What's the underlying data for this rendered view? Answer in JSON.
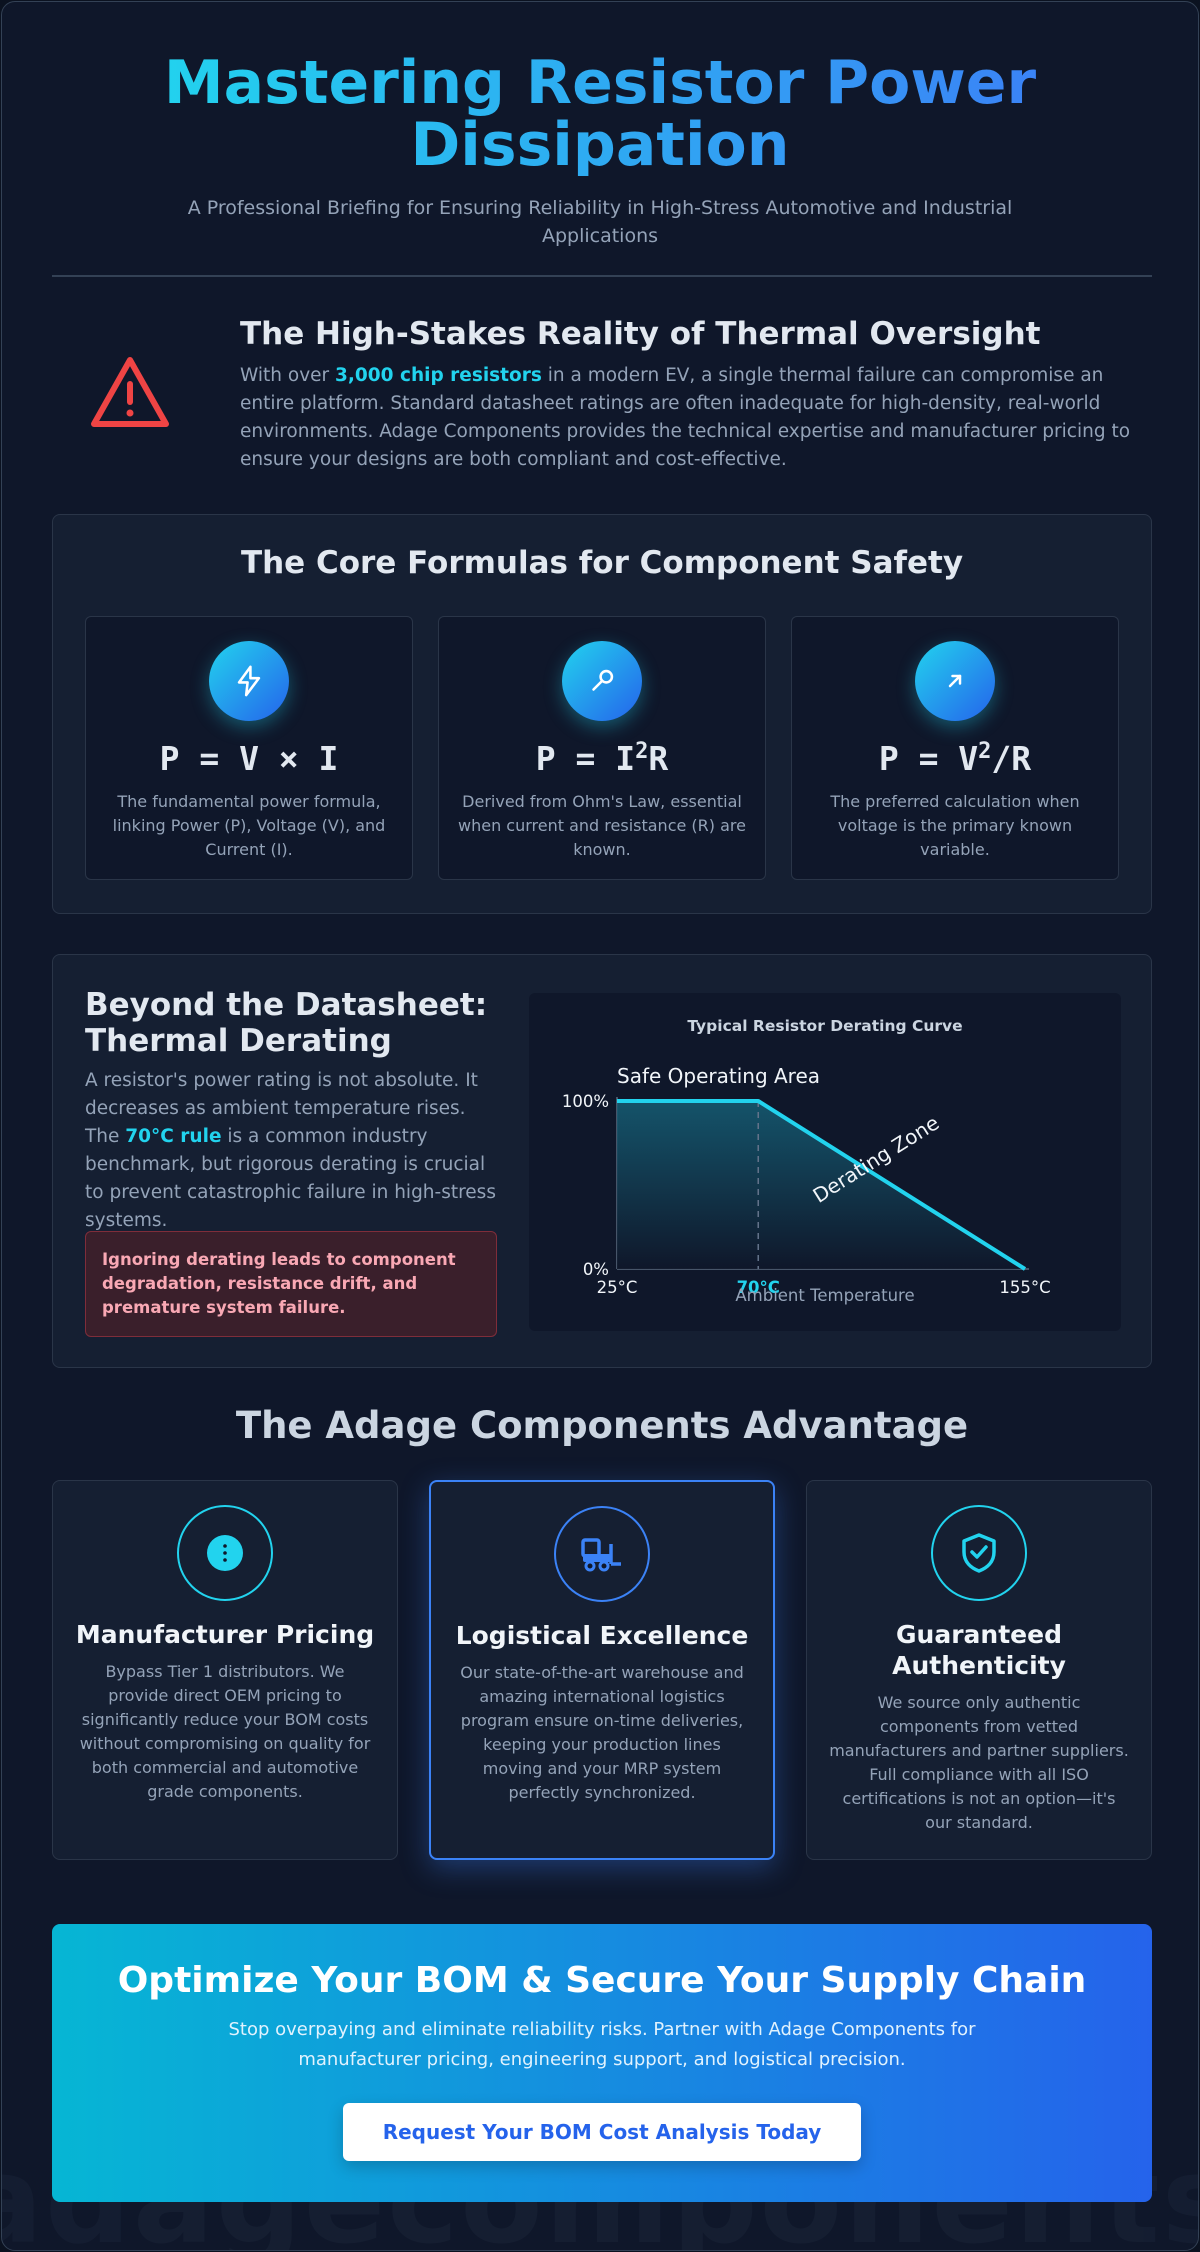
{
  "header": {
    "title": "Mastering Resistor Power Dissipation",
    "subtitle": "A Professional Briefing for Ensuring Reliability in High-Stress Automotive and Industrial Applications"
  },
  "intro": {
    "icon": "warning-triangle-icon",
    "title": "The High-Stakes Reality of Thermal Oversight",
    "text_before": "With over ",
    "highlight": "3,000 chip resistors",
    "text_after": " in a modern EV, a single thermal failure can compromise an entire platform. Standard datasheet ratings are often inadequate for high-density, real-world environments. Adage Components provides the technical expertise and manufacturer pricing to ensure your designs are both compliant and cost-effective."
  },
  "formulas": {
    "title": "The Core Formulas for Component Safety",
    "cards": [
      {
        "icon": "lightning-icon",
        "formula_base": "P = V × I",
        "formula_sup": "",
        "formula_tail": "",
        "desc": "The fundamental power formula, linking Power (P), Voltage (V), and Current (I)."
      },
      {
        "icon": "probe-icon",
        "formula_base": "P = I",
        "formula_sup": "2",
        "formula_tail": "R",
        "desc": "Derived from Ohm's Law, essential when current and resistance (R) are known."
      },
      {
        "icon": "arrow-up-right-icon",
        "formula_base": "P = V",
        "formula_sup": "2",
        "formula_tail": "/R",
        "desc": "The preferred calculation when voltage is the primary known variable."
      }
    ]
  },
  "derating": {
    "title": "Beyond the Datasheet: Thermal Derating",
    "text_before": "A resistor's power rating is not absolute. It decreases as ambient temperature rises. The ",
    "highlight": "70°C rule",
    "text_after": " is a common industry benchmark, but rigorous derating is crucial to prevent catastrophic failure in high-stress systems.",
    "warning": "Ignoring derating leads to component degradation, resistance drift, and premature system failure."
  },
  "chart_data": {
    "type": "area",
    "title": "Typical Resistor Derating Curve",
    "xlabel": "Ambient Temperature",
    "ylabel": "",
    "x": [
      25,
      70,
      155
    ],
    "y": [
      100,
      100,
      0
    ],
    "xlim": [
      25,
      155
    ],
    "ylim": [
      0,
      100
    ],
    "x_tick_labels": [
      "25°C",
      "70°C",
      "155°C"
    ],
    "y_tick_labels": [
      "0%",
      "100%"
    ],
    "annotations": [
      "Safe Operating Area",
      "Derating Zone"
    ],
    "line_color": "#22d3ee",
    "highlight_tick_color": "#22d3ee"
  },
  "advantage": {
    "title": "The Adage Components Advantage",
    "cards": [
      {
        "icon": "coin-icon",
        "title": "Manufacturer Pricing",
        "desc": "Bypass Tier 1 distributors. We provide direct OEM pricing to significantly reduce your BOM costs without compromising on quality for both commercial and automotive grade components."
      },
      {
        "icon": "forklift-icon",
        "title": "Logistical Excellence",
        "desc": "Our state-of-the-art warehouse and amazing international logistics program ensure on-time deliveries, keeping your production lines moving and your MRP system perfectly synchronized."
      },
      {
        "icon": "shield-check-icon",
        "title": "Guaranteed Authenticity",
        "desc": "We source only authentic components from vetted manufacturers and partner suppliers. Full compliance with all ISO certifications is not an option—it's our standard."
      }
    ]
  },
  "cta": {
    "title": "Optimize Your BOM & Secure Your Supply Chain",
    "text": "Stop overpaying and eliminate reliability risks. Partner with Adage Components for manufacturer pricing, engineering support, and logistical precision.",
    "button": "Request Your BOM Cost Analysis Today"
  },
  "watermark": "adagecomponents.com",
  "colors": {
    "accent": "#22d3ee",
    "brand_blue": "#3b82f6",
    "danger": "#ef4444",
    "background": "#0f172a"
  }
}
